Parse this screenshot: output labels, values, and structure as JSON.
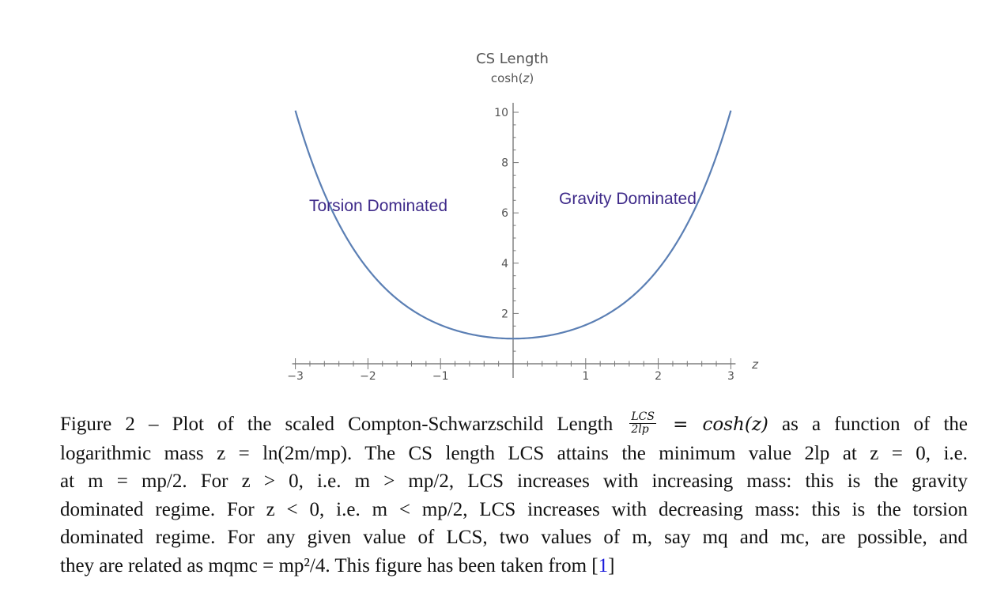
{
  "chart_data": {
    "type": "line",
    "function": "cosh(z)",
    "xlabel": "z",
    "ylabel": "CS Length",
    "ysublabel": "cosh(z)",
    "xlim": [
      -3,
      3
    ],
    "ylim": [
      0,
      10
    ],
    "x_ticks": [
      -3,
      -2,
      -1,
      1,
      2,
      3
    ],
    "y_ticks": [
      2,
      4,
      6,
      8,
      10
    ],
    "x": [
      -3,
      -2.5,
      -2,
      -1.5,
      -1,
      -0.5,
      0,
      0.5,
      1,
      1.5,
      2,
      2.5,
      3
    ],
    "series": [
      {
        "values": [
          10.07,
          6.13,
          3.76,
          2.35,
          1.54,
          1.13,
          1.0,
          1.13,
          1.54,
          2.35,
          3.76,
          6.13,
          10.07
        ],
        "color": "#5b7fb4"
      }
    ],
    "annotations": [
      {
        "text": "Torsion Dominated",
        "color": "#3f2b8a"
      },
      {
        "text": "Gravity Dominated",
        "color": "#3f2b8a"
      }
    ],
    "grid": false
  },
  "caption": {
    "figure_label": "Figure 2 –",
    "line1_pre": "Plot of the scaled Compton-Schwarzschild Length",
    "frac_num": "LCS",
    "frac_den": "2lp",
    "line1_eq": "= cosh(z)",
    "line1_post": "as a function of the",
    "line2": "logarithmic mass z = ln(2m/mp). The CS length LCS attains the minimum value 2lp at z = 0, i.e.",
    "line3": "at m = mp/2. For z > 0, i.e. m > mp/2, LCS increases with increasing mass: this is the gravity",
    "line4": "dominated regime. For z < 0, i.e. m < mp/2, LCS increases with decreasing mass: this is the torsion",
    "line5": "dominated regime. For any given value of LCS, two values of m, say mq and mc, are possible, and",
    "line6_pre": "they are related as mqmc = mp²/4. This figure has been taken from [",
    "ref": "1",
    "line6_post": "]"
  }
}
